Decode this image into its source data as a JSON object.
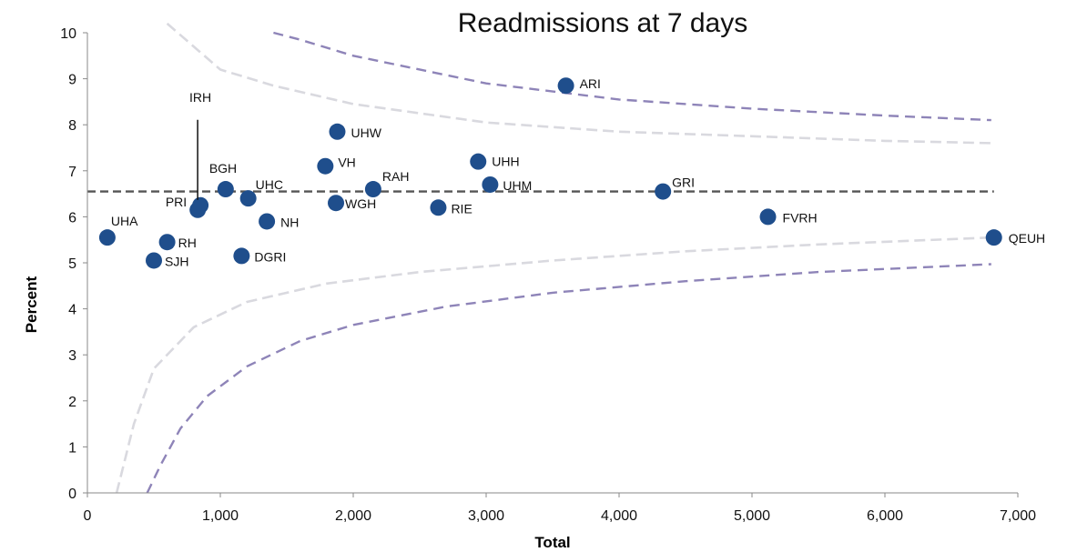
{
  "chart_data": {
    "type": "scatter",
    "title": "Readmissions at 7 days",
    "xlabel": "Total",
    "ylabel": "Percent",
    "xlim": [
      0,
      7000
    ],
    "ylim": [
      0,
      10
    ],
    "x_ticks": [
      0,
      1000,
      2000,
      3000,
      4000,
      5000,
      6000,
      7000
    ],
    "x_tick_labels": [
      "0",
      "1,000",
      "2,000",
      "3,000",
      "4,000",
      "5,000",
      "6,000",
      "7,000"
    ],
    "y_ticks": [
      0,
      1,
      2,
      3,
      4,
      5,
      6,
      7,
      8,
      9,
      10
    ],
    "y_tick_labels": [
      "0",
      "1",
      "2",
      "3",
      "4",
      "5",
      "6",
      "7",
      "8",
      "9",
      "10"
    ],
    "grid": false,
    "legend": "none",
    "marker_color": "#1F4E8C",
    "mean_line": {
      "y": 6.55,
      "color": "#555555"
    },
    "control_limits": [
      {
        "color": "#8E84B8",
        "upper": [
          [
            1400,
            10.0
          ],
          [
            1600,
            9.85
          ],
          [
            2000,
            9.5
          ],
          [
            3000,
            8.9
          ],
          [
            4000,
            8.55
          ],
          [
            5000,
            8.35
          ],
          [
            6000,
            8.2
          ],
          [
            6800,
            8.1
          ]
        ],
        "lower": [
          [
            450,
            0.0
          ],
          [
            550,
            0.6
          ],
          [
            700,
            1.4
          ],
          [
            900,
            2.1
          ],
          [
            1200,
            2.75
          ],
          [
            1600,
            3.3
          ],
          [
            2000,
            3.65
          ],
          [
            2700,
            4.05
          ],
          [
            3500,
            4.35
          ],
          [
            4500,
            4.6
          ],
          [
            5500,
            4.8
          ],
          [
            6800,
            4.97
          ]
        ]
      },
      {
        "color": "#D9D9DF",
        "upper": [
          [
            600,
            10.2
          ],
          [
            1000,
            9.2
          ],
          [
            1400,
            8.85
          ],
          [
            2000,
            8.45
          ],
          [
            3000,
            8.05
          ],
          [
            4000,
            7.85
          ],
          [
            5000,
            7.75
          ],
          [
            6000,
            7.65
          ],
          [
            6800,
            7.6
          ]
        ],
        "lower": [
          [
            220,
            0.0
          ],
          [
            350,
            1.5
          ],
          [
            500,
            2.7
          ],
          [
            800,
            3.6
          ],
          [
            1200,
            4.15
          ],
          [
            1800,
            4.55
          ],
          [
            2500,
            4.8
          ],
          [
            3500,
            5.05
          ],
          [
            4500,
            5.25
          ],
          [
            5500,
            5.4
          ],
          [
            6800,
            5.55
          ]
        ]
      }
    ],
    "points": [
      {
        "label": "UHA",
        "x": 150,
        "y": 5.55
      },
      {
        "label": "SJH",
        "x": 500,
        "y": 5.05
      },
      {
        "label": "RH",
        "x": 600,
        "y": 5.45
      },
      {
        "label": "PRI",
        "x": 830,
        "y": 6.15
      },
      {
        "label": "IRH",
        "x": 850,
        "y": 6.25
      },
      {
        "label": "BGH",
        "x": 1040,
        "y": 6.6
      },
      {
        "label": "DGRI",
        "x": 1160,
        "y": 5.15
      },
      {
        "label": "UHC",
        "x": 1210,
        "y": 6.4
      },
      {
        "label": "NH",
        "x": 1350,
        "y": 5.9
      },
      {
        "label": "VH",
        "x": 1790,
        "y": 7.1
      },
      {
        "label": "WGH",
        "x": 1870,
        "y": 6.3
      },
      {
        "label": "UHW",
        "x": 1880,
        "y": 7.85
      },
      {
        "label": "RAH",
        "x": 2150,
        "y": 6.6
      },
      {
        "label": "RIE",
        "x": 2640,
        "y": 6.2
      },
      {
        "label": "UHH",
        "x": 2940,
        "y": 7.2
      },
      {
        "label": "UHM",
        "x": 3030,
        "y": 6.7
      },
      {
        "label": "ARI",
        "x": 3600,
        "y": 8.85
      },
      {
        "label": "GRI",
        "x": 4330,
        "y": 6.55
      },
      {
        "label": "FVRH",
        "x": 5120,
        "y": 6.0
      },
      {
        "label": "QEUH",
        "x": 6820,
        "y": 5.55
      }
    ]
  }
}
